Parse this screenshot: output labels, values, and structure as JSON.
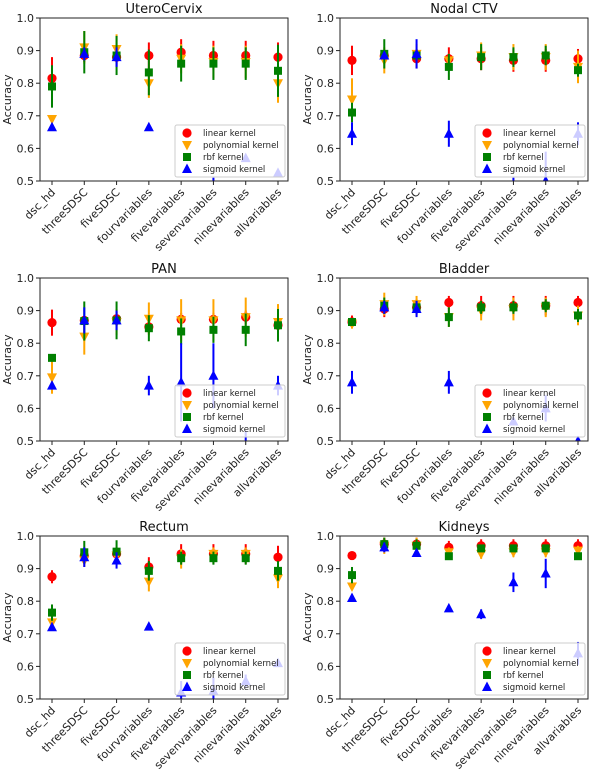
{
  "colors": {
    "linear kernel": "#ff0000",
    "polynomial kernel": "#ffa500",
    "rbf kernel": "#008000",
    "sigmoid kernel": "#0000ff"
  },
  "chart_data": [
    {
      "type": "scatter",
      "title": "UteroCervix",
      "ylabel": "Accuracy",
      "ylim": [
        0.5,
        1.0
      ],
      "yticks": [
        "0.5",
        "0.6",
        "0.7",
        "0.8",
        "0.9",
        "1.0"
      ],
      "legend": "lower-right",
      "categories": [
        "dsc_hd",
        "threeSDSC",
        "fiveSDSC",
        "fourvariables",
        "fivevariables",
        "sevenvariables",
        "ninevariables",
        "allvariables"
      ],
      "series": [
        {
          "name": "linear kernel",
          "values": [
            0.815,
            0.885,
            0.88,
            0.885,
            0.895,
            0.885,
            0.885,
            0.88
          ],
          "err": [
            0.065,
            0.02,
            0.03,
            0.04,
            0.04,
            0.045,
            0.045,
            0.045
          ]
        },
        {
          "name": "polynomial kernel",
          "values": [
            0.69,
            0.91,
            0.905,
            0.8,
            0.875,
            0.865,
            0.865,
            0.8
          ],
          "err": [
            0.01,
            0.05,
            0.045,
            0.045,
            0.045,
            0.05,
            0.05,
            0.06
          ]
        },
        {
          "name": "rbf kernel",
          "values": [
            0.79,
            0.895,
            0.885,
            0.833,
            0.86,
            0.86,
            0.86,
            0.838
          ],
          "err": [
            0.065,
            0.065,
            0.06,
            0.07,
            0.055,
            0.05,
            0.05,
            0.08
          ]
        },
        {
          "name": "sigmoid kernel",
          "values": [
            0.665,
            0.89,
            0.88,
            0.665,
            0.48,
            0.49,
            0.57,
            0.525
          ],
          "err": [
            0,
            0.02,
            0.03,
            0,
            0,
            0.02,
            0.01,
            0.01
          ]
        }
      ]
    },
    {
      "type": "scatter",
      "title": "Nodal CTV",
      "ylabel": "Accuracy",
      "ylim": [
        0.5,
        1.0
      ],
      "yticks": [
        "0.5",
        "0.6",
        "0.7",
        "0.8",
        "0.9",
        "1.0"
      ],
      "legend": "lower-right",
      "categories": [
        "dsc_hd",
        "threeSDSC",
        "fiveSDSC",
        "fourvariables",
        "fivevariables",
        "sevenvariables",
        "ninevariables",
        "allvariables"
      ],
      "series": [
        {
          "name": "linear kernel",
          "values": [
            0.87,
            0.885,
            0.875,
            0.875,
            0.875,
            0.87,
            0.87,
            0.875
          ],
          "err": [
            0.045,
            0.01,
            0.03,
            0.035,
            0.035,
            0.035,
            0.035,
            0.03
          ]
        },
        {
          "name": "polynomial kernel",
          "values": [
            0.75,
            0.87,
            0.89,
            0.87,
            0.885,
            0.88,
            0.88,
            0.85
          ],
          "err": [
            0.065,
            0.04,
            0.03,
            0.02,
            0.04,
            0.04,
            0.04,
            0.05
          ]
        },
        {
          "name": "rbf kernel",
          "values": [
            0.71,
            0.89,
            0.885,
            0.85,
            0.88,
            0.88,
            0.885,
            0.84
          ],
          "err": [
            0.03,
            0.045,
            0.02,
            0.04,
            0.04,
            0.03,
            0.03,
            0.02
          ]
        },
        {
          "name": "sigmoid kernel",
          "values": [
            0.645,
            0.885,
            0.89,
            0.645,
            0.45,
            0.45,
            0.5,
            0.645
          ],
          "err": [
            0.035,
            0.01,
            0.045,
            0.04,
            0,
            0.06,
            0.09,
            0.035
          ]
        }
      ]
    },
    {
      "type": "scatter",
      "title": "PAN",
      "ylabel": "Accuracy",
      "ylim": [
        0.5,
        1.0
      ],
      "yticks": [
        "0.5",
        "0.6",
        "0.7",
        "0.8",
        "0.9",
        "1.0"
      ],
      "legend": "lower-right",
      "categories": [
        "dsc_hd",
        "threeSDSC",
        "fiveSDSC",
        "fourvariables",
        "fivevariables",
        "sevenvariables",
        "ninevariables",
        "allvariables"
      ],
      "series": [
        {
          "name": "linear kernel",
          "values": [
            0.863,
            0.87,
            0.875,
            0.85,
            0.873,
            0.873,
            0.88,
            0.855
          ],
          "err": [
            0.04,
            0.01,
            0.02,
            0.02,
            0.02,
            0.02,
            0.02,
            0.02
          ]
        },
        {
          "name": "polynomial kernel",
          "values": [
            0.695,
            0.82,
            0.865,
            0.875,
            0.87,
            0.87,
            0.88,
            0.865
          ],
          "err": [
            0.05,
            0.055,
            0.04,
            0.05,
            0.065,
            0.065,
            0.06,
            0.055
          ]
        },
        {
          "name": "rbf kernel",
          "values": [
            0.755,
            0.868,
            0.87,
            0.846,
            0.836,
            0.841,
            0.841,
            0.855
          ],
          "err": [
            0.01,
            0.06,
            0.058,
            0.04,
            0.04,
            0.04,
            0.05,
            0.05
          ]
        },
        {
          "name": "sigmoid kernel",
          "values": [
            0.67,
            0.87,
            0.87,
            0.67,
            0.68,
            0.7,
            0.48,
            0.67
          ],
          "err": [
            0,
            0.04,
            0.03,
            0.03,
            0.12,
            0.1,
            0.05,
            0.03
          ]
        }
      ]
    },
    {
      "type": "scatter",
      "title": "Bladder",
      "ylabel": "Accuracy",
      "ylim": [
        0.5,
        1.0
      ],
      "yticks": [
        "0.5",
        "0.6",
        "0.7",
        "0.8",
        "0.9",
        "1.0"
      ],
      "legend": "lower-right",
      "categories": [
        "dsc_hd",
        "threeSDSC",
        "fiveSDSC",
        "fourvariables",
        "fivevariables",
        "sevenvariables",
        "ninevariables",
        "allvariables"
      ],
      "series": [
        {
          "name": "linear kernel",
          "values": [
            0.865,
            0.905,
            0.91,
            0.925,
            0.915,
            0.915,
            0.915,
            0.925
          ],
          "err": [
            0.02,
            0.025,
            0.025,
            0.02,
            0.03,
            0.03,
            0.03,
            0.02
          ]
        },
        {
          "name": "polynomial kernel",
          "values": [
            0.86,
            0.92,
            0.92,
            0.88,
            0.9,
            0.905,
            0.91,
            0.885
          ],
          "err": [
            0.015,
            0.035,
            0.025,
            0.03,
            0.03,
            0.035,
            0.03,
            0.03
          ]
        },
        {
          "name": "rbf kernel",
          "values": [
            0.865,
            0.915,
            0.91,
            0.88,
            0.91,
            0.91,
            0.915,
            0.885
          ],
          "err": [
            0.01,
            0.025,
            0.02,
            0.03,
            0.02,
            0.02,
            0.02,
            0.02
          ]
        },
        {
          "name": "sigmoid kernel",
          "values": [
            0.68,
            0.91,
            0.905,
            0.68,
            0.46,
            0.56,
            0.6,
            0.5
          ],
          "err": [
            0.035,
            0.02,
            0.025,
            0.035,
            0,
            0.01,
            0.04,
            0.015
          ]
        }
      ]
    },
    {
      "type": "scatter",
      "title": "Rectum",
      "ylabel": "Accuracy",
      "ylim": [
        0.5,
        1.0
      ],
      "yticks": [
        "0.5",
        "0.6",
        "0.7",
        "0.8",
        "0.9",
        "1.0"
      ],
      "legend": "lower-right",
      "categories": [
        "dsc_hd",
        "threeSDSC",
        "fiveSDSC",
        "fourvariables",
        "fivevariables",
        "sevenvariables",
        "ninevariables",
        "allvariables"
      ],
      "series": [
        {
          "name": "linear kernel",
          "values": [
            0.875,
            0.94,
            0.945,
            0.905,
            0.945,
            0.945,
            0.945,
            0.935
          ],
          "err": [
            0.02,
            0.02,
            0.02,
            0.03,
            0.03,
            0.03,
            0.03,
            0.035
          ]
        },
        {
          "name": "polynomial kernel",
          "values": [
            0.735,
            0.925,
            0.94,
            0.86,
            0.93,
            0.945,
            0.945,
            0.87
          ],
          "err": [
            0.01,
            0.02,
            0.02,
            0.03,
            0.03,
            0.02,
            0.02,
            0.03
          ]
        },
        {
          "name": "rbf kernel",
          "values": [
            0.765,
            0.95,
            0.952,
            0.893,
            0.932,
            0.932,
            0.932,
            0.893
          ],
          "err": [
            0.025,
            0.035,
            0.035,
            0.03,
            0.02,
            0.02,
            0.02,
            0.03
          ]
        },
        {
          "name": "sigmoid kernel",
          "values": [
            0.72,
            0.935,
            0.925,
            0.722,
            0.52,
            0.525,
            0.555,
            0.61
          ],
          "err": [
            0,
            0.03,
            0.025,
            0,
            0.035,
            0.04,
            0.02,
            0
          ]
        }
      ]
    },
    {
      "type": "scatter",
      "title": "Kidneys",
      "ylabel": "Accuracy",
      "ylim": [
        0.5,
        1.0
      ],
      "yticks": [
        "0.5",
        "0.6",
        "0.7",
        "0.8",
        "0.9",
        "1.0"
      ],
      "legend": "lower-right",
      "categories": [
        "dsc_hd",
        "threeSDSC",
        "fiveSDSC",
        "fourvariables",
        "fivevariables",
        "sevenvariables",
        "ninevariables",
        "allvariables"
      ],
      "series": [
        {
          "name": "linear kernel",
          "values": [
            0.94,
            0.975,
            0.975,
            0.965,
            0.97,
            0.97,
            0.97,
            0.97
          ],
          "err": [
            0,
            0.02,
            0.02,
            0.02,
            0.02,
            0.02,
            0.02,
            0.02
          ]
        },
        {
          "name": "polynomial kernel",
          "values": [
            0.845,
            0.97,
            0.97,
            0.95,
            0.945,
            0.95,
            0.95,
            0.955
          ],
          "err": [
            0,
            0.025,
            0.025,
            0.015,
            0.015,
            0.015,
            0.015,
            0.015
          ]
        },
        {
          "name": "rbf kernel",
          "values": [
            0.88,
            0.975,
            0.97,
            0.938,
            0.962,
            0.962,
            0.962,
            0.938
          ],
          "err": [
            0.025,
            0.02,
            0.02,
            0.01,
            0.01,
            0.01,
            0.01,
            0.01
          ]
        },
        {
          "name": "sigmoid kernel",
          "values": [
            0.81,
            0.965,
            0.948,
            0.778,
            0.76,
            0.858,
            0.885,
            0.64
          ],
          "err": [
            0.01,
            0.015,
            0.01,
            0.01,
            0.015,
            0.03,
            0.045,
            0.035
          ]
        }
      ]
    }
  ]
}
